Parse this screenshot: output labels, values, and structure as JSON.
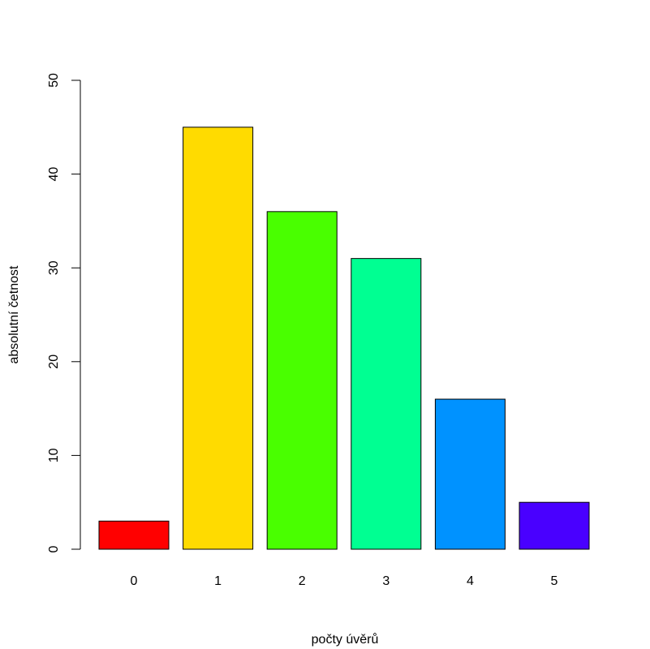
{
  "chart_data": {
    "type": "bar",
    "title": "",
    "xlabel": "počty úvěrů",
    "ylabel": "absolutní četnost",
    "categories": [
      "0",
      "1",
      "2",
      "3",
      "4",
      "5"
    ],
    "values": [
      3,
      45,
      36,
      31,
      16,
      5
    ],
    "colors": [
      "#FF0000",
      "#FFDB00",
      "#49FF00",
      "#00FF92",
      "#0092FF",
      "#4900FF"
    ],
    "ylim": [
      0,
      50
    ],
    "yticks": [
      "0",
      "10",
      "20",
      "30",
      "40",
      "50"
    ],
    "grid": false,
    "legend": "none"
  }
}
